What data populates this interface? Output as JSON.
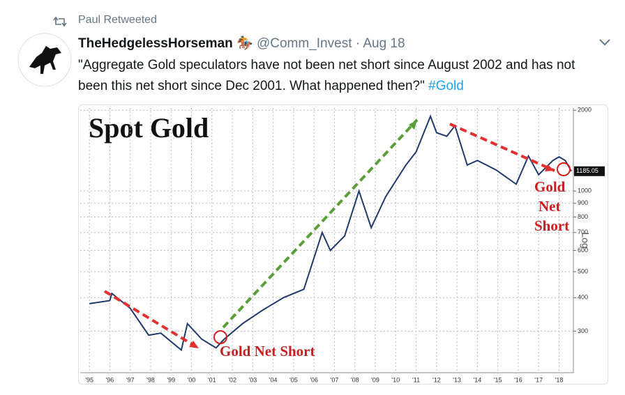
{
  "tweet": {
    "retweet_label": "Paul Retweeted",
    "name": "TheHedgelessHorseman",
    "handle": "@Comm_Invest",
    "date": "· Aug 18",
    "text": "\"Aggregate Gold speculators have not been net short since August 2002 and has not been this net short since Dec 2001. What happened then?\"",
    "hashtag": "#Gold"
  },
  "chart_data": {
    "type": "line",
    "title": "Spot Gold",
    "y_axis_label": "Log",
    "log_scale": true,
    "grid": true,
    "x": [
      1995.0,
      1996.0,
      1996.1,
      1997.0,
      1997.9,
      1998.5,
      1999.5,
      1999.8,
      2000.5,
      2001.2,
      2001.6,
      2002.5,
      2003.5,
      2004.5,
      2005.5,
      2006.4,
      2006.8,
      2007.5,
      2008.2,
      2008.8,
      2009.5,
      2010.5,
      2011.0,
      2011.7,
      2012.0,
      2012.5,
      2012.9,
      2013.5,
      2014.0,
      2014.9,
      2015.9,
      2016.5,
      2017.0,
      2017.7,
      2018.0,
      2018.3,
      2018.6
    ],
    "series": [
      {
        "name": "Spot Gold",
        "color": "#1f3a6b",
        "values": [
          380,
          390,
          415,
          365,
          290,
          295,
          255,
          320,
          280,
          260,
          280,
          320,
          360,
          400,
          430,
          700,
          600,
          680,
          1000,
          730,
          950,
          1250,
          1400,
          1900,
          1650,
          1600,
          1750,
          1250,
          1300,
          1200,
          1060,
          1350,
          1150,
          1300,
          1340,
          1300,
          1185
        ]
      }
    ],
    "last_price": 1185.05,
    "xlim": [
      1994.55,
      2018.7
    ],
    "ylim": [
      210,
      2040
    ],
    "yticks": [
      300,
      400,
      500,
      600,
      700,
      800,
      900,
      1000,
      2000
    ],
    "xticks": [
      {
        "value": 1995,
        "label": "'95"
      },
      {
        "value": 1996,
        "label": "'96"
      },
      {
        "value": 1997,
        "label": "'97"
      },
      {
        "value": 1998,
        "label": "'98"
      },
      {
        "value": 1999,
        "label": "'99"
      },
      {
        "value": 2000,
        "label": "'00"
      },
      {
        "value": 2001,
        "label": "'01"
      },
      {
        "value": 2002,
        "label": "'02"
      },
      {
        "value": 2003,
        "label": "'03"
      },
      {
        "value": 2004,
        "label": "'04"
      },
      {
        "value": 2005,
        "label": "'05"
      },
      {
        "value": 2006,
        "label": "'06"
      },
      {
        "value": 2007,
        "label": "'07"
      },
      {
        "value": 2008,
        "label": "'08"
      },
      {
        "value": 2009,
        "label": "'09"
      },
      {
        "value": 2010,
        "label": "'10"
      },
      {
        "value": 2011,
        "label": "'11"
      },
      {
        "value": 2012,
        "label": "'12"
      },
      {
        "value": 2013,
        "label": "'13"
      },
      {
        "value": 2014,
        "label": "'14"
      },
      {
        "value": 2015,
        "label": "'15"
      },
      {
        "value": 2016,
        "label": "'16"
      },
      {
        "value": 2017,
        "label": "'17"
      },
      {
        "value": 2018,
        "label": "'18"
      }
    ],
    "annotations": [
      "Gold Net Short",
      "Gold",
      "Net",
      "Short"
    ]
  }
}
